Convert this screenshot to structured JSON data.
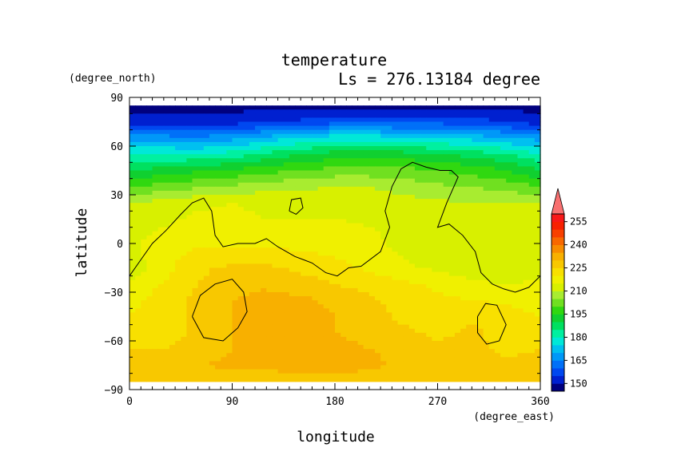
{
  "chart_data": {
    "type": "heatmap",
    "title": "temperature",
    "subtitle": "Ls = 276.13184 degree",
    "xlabel": "longitude",
    "ylabel": "latitude",
    "x_units": "(degree_east)",
    "y_units": "(degree_north)",
    "xlim": [
      0,
      360
    ],
    "ylim": [
      -90,
      90
    ],
    "x_ticks": [
      "0",
      "90",
      "180",
      "270",
      "360"
    ],
    "y_ticks": [
      "90",
      "60",
      "30",
      "0",
      "−30",
      "−60",
      "−90"
    ],
    "latitudes": [
      85,
      75,
      65,
      55,
      45,
      35,
      25,
      15,
      5,
      -5,
      -15,
      -25,
      -35,
      -45,
      -55,
      -65,
      -75,
      -85
    ],
    "longitudes": [
      0,
      30,
      60,
      90,
      120,
      150,
      180,
      210,
      240,
      270,
      300,
      330,
      360
    ],
    "values": [
      [
        148,
        148,
        148,
        148,
        148,
        148,
        148,
        148,
        148,
        148,
        148,
        148,
        148
      ],
      [
        152,
        152,
        152,
        153,
        154,
        156,
        158,
        158,
        158,
        158,
        157,
        155,
        152
      ],
      [
        168,
        167,
        166,
        168,
        172,
        175,
        178,
        178,
        176,
        175,
        173,
        170,
        168
      ],
      [
        180,
        180,
        180,
        182,
        186,
        190,
        192,
        192,
        192,
        190,
        188,
        185,
        180
      ],
      [
        190,
        192,
        194,
        196,
        198,
        200,
        202,
        202,
        202,
        200,
        198,
        195,
        190
      ],
      [
        200,
        202,
        204,
        206,
        208,
        209,
        210,
        210,
        208,
        206,
        205,
        203,
        200
      ],
      [
        210,
        212,
        214,
        215,
        214,
        213,
        213,
        212,
        212,
        211,
        210,
        210,
        210
      ],
      [
        212,
        214,
        216,
        216,
        215,
        215,
        215,
        214,
        212,
        211,
        210,
        210,
        212
      ],
      [
        214,
        216,
        218,
        218,
        218,
        218,
        218,
        216,
        213,
        211,
        210,
        211,
        214
      ],
      [
        214,
        218,
        221,
        221,
        221,
        220,
        219,
        217,
        214,
        212,
        211,
        212,
        214
      ],
      [
        212,
        218,
        224,
        226,
        226,
        224,
        222,
        219,
        216,
        214,
        212,
        211,
        212
      ],
      [
        216,
        220,
        225,
        228,
        229,
        227,
        225,
        223,
        221,
        219,
        216,
        215,
        216
      ],
      [
        218,
        223,
        226,
        230,
        232,
        231,
        229,
        226,
        223,
        221,
        220,
        219,
        218
      ],
      [
        220,
        223,
        226,
        230,
        232,
        232,
        230,
        227,
        224,
        223,
        224,
        222,
        220
      ],
      [
        220,
        222,
        226,
        230,
        232,
        232,
        230,
        228,
        226,
        224,
        226,
        223,
        220
      ],
      [
        225,
        225,
        227,
        230,
        232,
        232,
        232,
        230,
        228,
        226,
        226,
        224,
        225
      ],
      [
        226,
        227,
        230,
        231,
        232,
        233,
        233,
        232,
        228,
        227,
        227,
        226,
        226
      ],
      [
        226,
        226,
        226,
        226,
        226,
        226,
        226,
        226,
        226,
        226,
        226,
        226,
        226
      ]
    ],
    "zero_elevation_contours": [
      [
        [
          0,
          -20
        ],
        [
          8,
          -12
        ],
        [
          20,
          0
        ],
        [
          32,
          8
        ],
        [
          45,
          18
        ],
        [
          55,
          25
        ],
        [
          65,
          28
        ],
        [
          72,
          20
        ],
        [
          75,
          5
        ],
        [
          82,
          -2
        ],
        [
          95,
          0
        ],
        [
          110,
          0
        ],
        [
          120,
          3
        ],
        [
          130,
          -2
        ],
        [
          145,
          -8
        ],
        [
          160,
          -12
        ],
        [
          172,
          -18
        ],
        [
          182,
          -20
        ],
        [
          192,
          -15
        ],
        [
          203,
          -14
        ],
        [
          220,
          -5
        ],
        [
          228,
          10
        ],
        [
          224,
          20
        ],
        [
          230,
          35
        ],
        [
          238,
          46
        ],
        [
          248,
          50
        ],
        [
          260,
          47
        ],
        [
          272,
          45
        ],
        [
          282,
          45
        ],
        [
          288,
          41
        ],
        [
          278,
          25
        ],
        [
          270,
          10
        ],
        [
          280,
          12
        ],
        [
          292,
          5
        ],
        [
          303,
          -5
        ],
        [
          308,
          -18
        ],
        [
          318,
          -25
        ],
        [
          328,
          -28
        ],
        [
          338,
          -30
        ],
        [
          350,
          -27
        ],
        [
          360,
          -20
        ]
      ],
      [
        [
          140,
          20
        ],
        [
          146,
          18
        ],
        [
          152,
          22
        ],
        [
          150,
          28
        ],
        [
          142,
          27
        ],
        [
          140,
          20
        ]
      ],
      [
        [
          55,
          -45
        ],
        [
          62,
          -32
        ],
        [
          75,
          -25
        ],
        [
          90,
          -22
        ],
        [
          100,
          -30
        ],
        [
          103,
          -42
        ],
        [
          95,
          -52
        ],
        [
          82,
          -60
        ],
        [
          65,
          -58
        ],
        [
          55,
          -45
        ]
      ],
      [
        [
          305,
          -45
        ],
        [
          312,
          -37
        ],
        [
          322,
          -38
        ],
        [
          330,
          -50
        ],
        [
          324,
          -60
        ],
        [
          313,
          -62
        ],
        [
          305,
          -55
        ],
        [
          305,
          -45
        ]
      ]
    ],
    "colorbar": {
      "levels": [
        145,
        150,
        155,
        160,
        165,
        170,
        175,
        180,
        185,
        190,
        195,
        200,
        205,
        210,
        215,
        220,
        225,
        230,
        235,
        240,
        245,
        250,
        255,
        260
      ],
      "colors": [
        "#00007f",
        "#0020d0",
        "#0048f0",
        "#0070f8",
        "#0098f8",
        "#00c0f0",
        "#00e8d8",
        "#00f0a0",
        "#00e060",
        "#10d030",
        "#30d810",
        "#70e020",
        "#a8ec30",
        "#d8f000",
        "#f0f000",
        "#f8e000",
        "#f8c800",
        "#f8b000",
        "#f88c00",
        "#f86800",
        "#f84000",
        "#f82000",
        "#f81818",
        "#f87070"
      ],
      "tick_labels": [
        "150",
        "165",
        "180",
        "195",
        "210",
        "225",
        "240",
        "255"
      ]
    }
  }
}
